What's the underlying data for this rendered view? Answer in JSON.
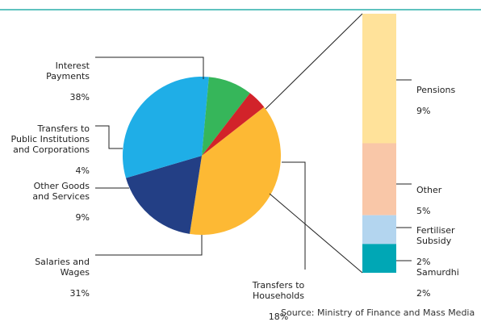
{
  "chart_data": [
    {
      "type": "pie",
      "slices": [
        {
          "label": "Interest\nPayments",
          "percent_label": "38%",
          "value": 38,
          "color": "#FDB934"
        },
        {
          "label": "Transfers to\nHouseholds",
          "percent_label": "18%",
          "value": 18,
          "color": "#233F85"
        },
        {
          "label": "Salaries and\nWages",
          "percent_label": "31%",
          "value": 31,
          "color": "#1FAEE7"
        },
        {
          "label": "Other Goods\nand Services",
          "percent_label": "9%",
          "value": 9,
          "color": "#36B65A"
        },
        {
          "label": "Transfers to\nPublic Institutions\nand Corporations",
          "percent_label": "4%",
          "value": 4,
          "color": "#D2232A"
        }
      ]
    },
    {
      "type": "bar",
      "stacked": true,
      "segments": [
        {
          "label": "Pensions",
          "percent_label": "9%",
          "value": 9,
          "color": "#FFE29A"
        },
        {
          "label": "Other",
          "percent_label": "5%",
          "value": 5,
          "color": "#F9C7A8"
        },
        {
          "label": "Fertiliser\nSubsidy",
          "percent_label": "2%",
          "value": 2,
          "color": "#B3D5EF"
        },
        {
          "label": "Samurdhi",
          "percent_label": "2%",
          "value": 2,
          "color": "#00A7B5"
        }
      ]
    }
  ],
  "source": "Source: Ministry of Finance and Mass Media"
}
